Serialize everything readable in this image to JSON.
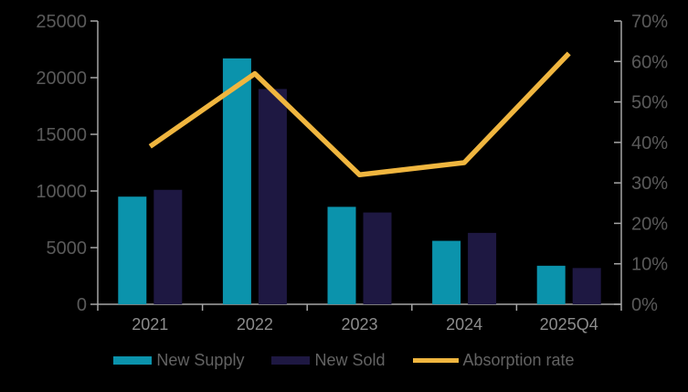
{
  "chart_data": {
    "type": "bar",
    "subtype": "combo-bar-line-dual-axis",
    "title": "",
    "categories": [
      "2021",
      "2022",
      "2023",
      "2024",
      "2025Q4"
    ],
    "series": [
      {
        "name": "New Supply",
        "kind": "bar",
        "axis": "left",
        "color": "#0b93ac",
        "values": [
          9500,
          21700,
          8600,
          5600,
          3400
        ]
      },
      {
        "name": "New Sold",
        "kind": "bar",
        "axis": "left",
        "color": "#1e1842",
        "values": [
          10100,
          19000,
          8100,
          6300,
          3200
        ]
      },
      {
        "name": "Absorption rate",
        "kind": "line",
        "axis": "right",
        "color": "#f0b63f",
        "values": [
          39,
          57,
          32,
          35,
          62
        ],
        "unit": "%"
      }
    ],
    "left_axis": {
      "min": 0,
      "max": 25000,
      "step": 5000,
      "tick_labels": [
        "0",
        "5000",
        "10000",
        "15000",
        "20000",
        "25000"
      ]
    },
    "right_axis": {
      "min": 0,
      "max": 70,
      "step": 10,
      "tick_labels": [
        "0%",
        "10%",
        "20%",
        "30%",
        "40%",
        "50%",
        "60%",
        "70%"
      ]
    },
    "grid": false,
    "legend_position": "bottom"
  },
  "style": {
    "background": "#000000",
    "axis_line_color": "#a6a6a6",
    "y_tick_label_color": "#5a5a5a",
    "x_tick_label_color": "#8c8c8c",
    "legend_text_color": "#636363"
  }
}
